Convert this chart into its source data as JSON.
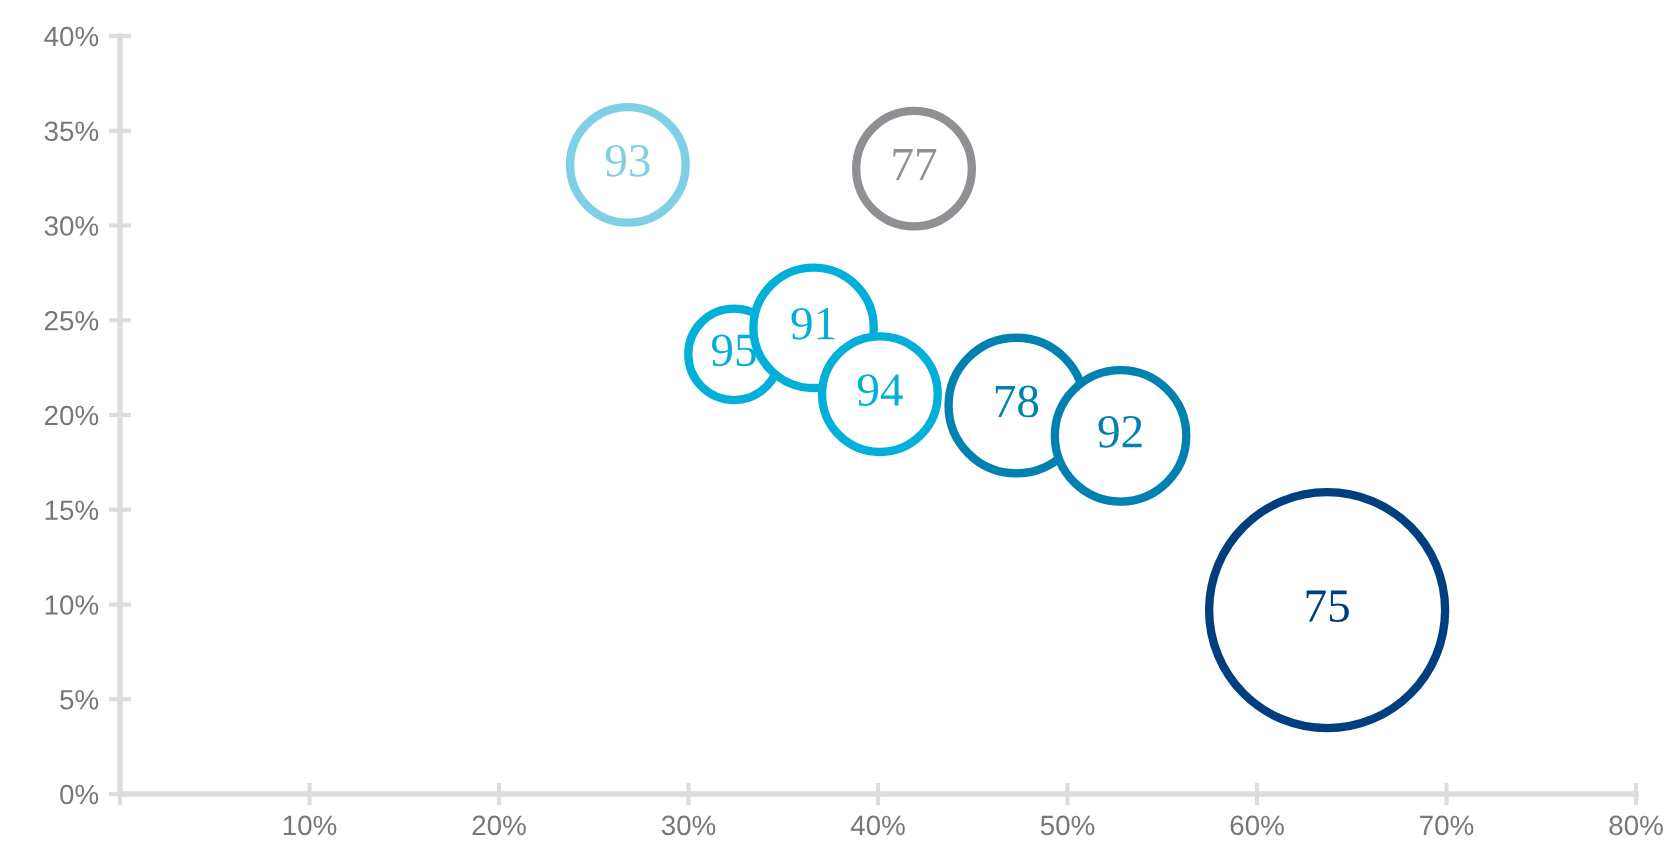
{
  "chart_data": {
    "type": "bubble",
    "x": [
      26.8,
      41.9,
      32.4,
      36.6,
      40.1,
      47.3,
      52.8,
      63.7
    ],
    "values": [
      33.2,
      33.0,
      23.2,
      24.6,
      21.1,
      20.5,
      18.9,
      9.7
    ],
    "sizes": [
      0.24,
      0.24,
      0.15,
      0.26,
      0.24,
      0.33,
      0.31,
      1
    ],
    "colors": [
      "#7fd0e6",
      "#8f8f94",
      "#00b0d8",
      "#00b0d8",
      "#00b0d8",
      "#0081b0",
      "#0081b0",
      "#003f7f"
    ],
    "annotations": [
      {
        "text": "93",
        "x": 26.8,
        "y": 33.2
      },
      {
        "text": "77",
        "x": 41.9,
        "y": 33.0
      },
      {
        "text": "95",
        "x": 32.4,
        "y": 23.2
      },
      {
        "text": "91",
        "x": 36.6,
        "y": 24.6
      },
      {
        "text": "94",
        "x": 40.1,
        "y": 21.1
      },
      {
        "text": "78",
        "x": 47.3,
        "y": 20.5
      },
      {
        "text": "92",
        "x": 52.8,
        "y": 18.9
      },
      {
        "text": "75",
        "x": 63.7,
        "y": 9.7
      }
    ],
    "xlim": [
      0,
      80
    ],
    "ylim": [
      0,
      40
    ],
    "xticks": [
      {
        "value": 0,
        "label": null
      },
      {
        "value": 10,
        "label": "10%"
      },
      {
        "value": 20,
        "label": "20%"
      },
      {
        "value": 30,
        "label": "30%"
      },
      {
        "value": 40,
        "label": "40%"
      },
      {
        "value": 50,
        "label": "50%"
      },
      {
        "value": 60,
        "label": "60%"
      },
      {
        "value": 70,
        "label": "70%"
      },
      {
        "value": 80,
        "label": "80%"
      }
    ],
    "yticks": [
      {
        "value": 0,
        "label": "0%"
      },
      {
        "value": 5,
        "label": "5%"
      },
      {
        "value": 10,
        "label": "10%"
      },
      {
        "value": 15,
        "label": "15%"
      },
      {
        "value": 20,
        "label": "20%"
      },
      {
        "value": 25,
        "label": "25%"
      },
      {
        "value": 30,
        "label": "30%"
      },
      {
        "value": 35,
        "label": "35%"
      },
      {
        "value": 40,
        "label": "40%"
      }
    ],
    "grid": false,
    "legend": false
  }
}
